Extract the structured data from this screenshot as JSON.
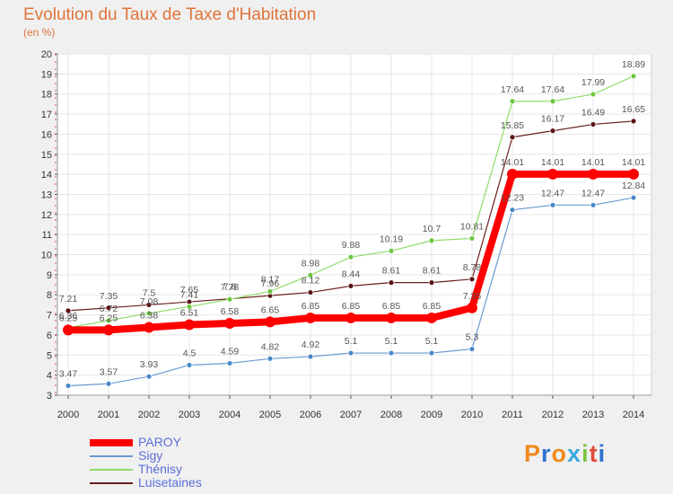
{
  "page": {
    "title": "Evolution du Taux de Taxe d'Habitation",
    "subtitle": "(en %)"
  },
  "logo": {
    "text": "Proxiti",
    "colors": [
      "#f08a1e",
      "#2f6fd0",
      "#f08a1e",
      "#3aa8e0",
      "#7cc242",
      "#e04a3a",
      "#2f6fd0"
    ]
  },
  "chart_data": {
    "type": "line",
    "title": "Evolution du Taux de Taxe d'Habitation",
    "ylabel": "(en %)",
    "xlabel": "",
    "ylim": [
      3,
      20
    ],
    "yticks": [
      3,
      4,
      5,
      6,
      7,
      8,
      9,
      10,
      11,
      12,
      13,
      14,
      15,
      16,
      17,
      18,
      19,
      20
    ],
    "x": [
      "2000",
      "2001",
      "2002",
      "2003",
      "2004",
      "2005",
      "2006",
      "2007",
      "2008",
      "2009",
      "2010",
      "2011",
      "2012",
      "2013",
      "2014"
    ],
    "grid": true,
    "legend": "bottom-left",
    "series": [
      {
        "name": "Luisetaines",
        "color": "#6b1f1f",
        "point_color": "#5a1414",
        "width": 1.2,
        "values": [
          7.21,
          7.35,
          7.5,
          7.65,
          7.8,
          7.96,
          8.12,
          8.44,
          8.61,
          8.61,
          8.78,
          15.85,
          16.17,
          16.49,
          16.65
        ],
        "labels": [
          "7.21",
          "7.35",
          "7.5",
          "7.65",
          "7.8",
          "7.96",
          "8.12",
          "8.44",
          "8.61",
          "8.61",
          "8.78",
          "15.85",
          "16.17",
          "16.49",
          "16.65"
        ]
      },
      {
        "name": "Thénisy",
        "color": "#8fdc6a",
        "point_color": "#6cc63e",
        "width": 1.2,
        "values": [
          6.36,
          6.72,
          7.08,
          7.41,
          7.78,
          8.17,
          8.98,
          9.88,
          10.19,
          10.7,
          10.81,
          17.64,
          17.64,
          17.99,
          18.89
        ],
        "labels": [
          "6.36",
          "6.72",
          "7.08",
          "7.41",
          "7.78",
          "8.17",
          "8.98",
          "9.88",
          "10.19",
          "10.7",
          "10.81",
          "17.64",
          "17.64",
          "17.99",
          "18.89"
        ]
      },
      {
        "name": "Sigy",
        "color": "#6a9ad0",
        "point_color": "#4a88c8",
        "width": 1.2,
        "values": [
          3.47,
          3.57,
          3.93,
          4.5,
          4.59,
          4.82,
          4.92,
          5.1,
          5.1,
          5.1,
          5.3,
          12.23,
          12.47,
          12.47,
          12.84
        ],
        "labels": [
          "3.47",
          "3.57",
          "3.93",
          "4.5",
          "4.59",
          "4.82",
          "4.92",
          "5.1",
          "5.1",
          "5.1",
          "5.3",
          "12.23",
          "12.47",
          "12.47",
          "12.84"
        ]
      },
      {
        "name": "PAROY",
        "color": "#ff0000",
        "point_color": "#ff0000",
        "width": 8,
        "values": [
          6.25,
          6.25,
          6.38,
          6.51,
          6.58,
          6.65,
          6.85,
          6.85,
          6.85,
          6.85,
          7.35,
          14.01,
          14.01,
          14.01,
          14.01
        ],
        "labels": [
          "6.25",
          "6.25",
          "6.38",
          "6.51",
          "6.58",
          "6.65",
          "6.85",
          "6.85",
          "6.85",
          "6.85",
          "7.35",
          "14.01",
          "14.01",
          "14.01",
          "14.01"
        ]
      }
    ],
    "legend_order": [
      "PAROY",
      "Sigy",
      "Thénisy",
      "Luisetaines"
    ]
  }
}
